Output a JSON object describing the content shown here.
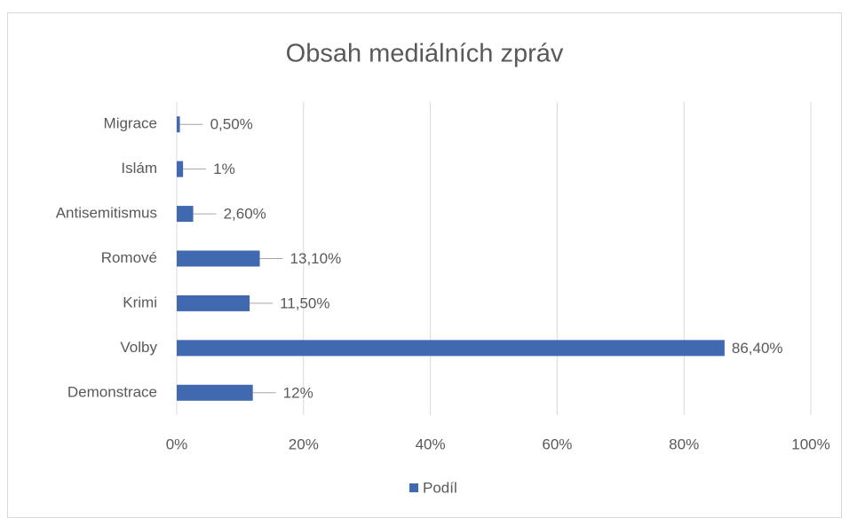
{
  "chart_data": {
    "type": "bar",
    "orientation": "horizontal",
    "title": "Obsah mediálních zpráv",
    "categories": [
      "Migrace",
      "Islám",
      "Antisemitismus",
      "Romové",
      "Krimi",
      "Volby",
      "Demonstrace"
    ],
    "series": [
      {
        "name": "Podíl",
        "color": "#4169b0",
        "values": [
          0.5,
          1,
          2.6,
          13.1,
          11.5,
          86.4,
          12
        ],
        "value_labels": [
          "0,50%",
          "1%",
          "2,60%",
          "13,10%",
          "11,50%",
          "86,40%",
          "12%"
        ]
      }
    ],
    "xlim": [
      0,
      100
    ],
    "xticks": [
      {
        "value": 0,
        "label": "0%"
      },
      {
        "value": 20,
        "label": "20%"
      },
      {
        "value": 40,
        "label": "40%"
      },
      {
        "value": 60,
        "label": "60%"
      },
      {
        "value": 80,
        "label": "80%"
      },
      {
        "value": 100,
        "label": "100%"
      }
    ],
    "grid": true,
    "legend": "bottom"
  }
}
